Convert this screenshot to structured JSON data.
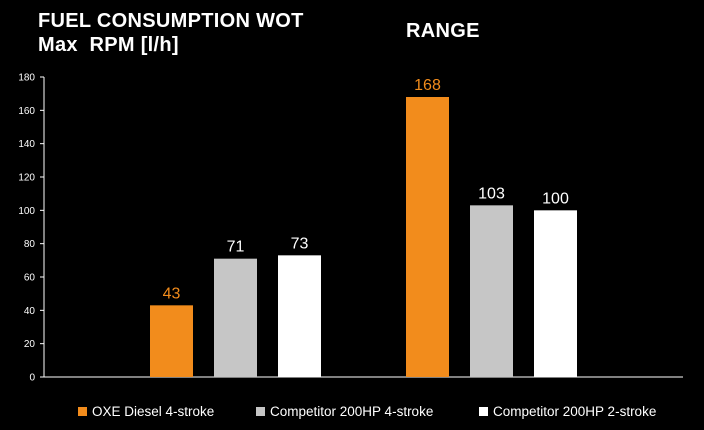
{
  "titles": {
    "left_line1": "FUEL CONSUMPTION WOT",
    "left_line2": "Max  RPM [l/h]",
    "right": "RANGE"
  },
  "colors": {
    "background": "#000000",
    "oxe": "#f28c1c",
    "competitor_4stroke": "#c6c6c6",
    "competitor_2stroke": "#ffffff",
    "axis": "#ffffff"
  },
  "chart_data": {
    "type": "bar",
    "categories": [
      "FUEL CONSUMPTION WOT Max  RPM [l/h]",
      "RANGE"
    ],
    "series": [
      {
        "name": "OXE Diesel 4-stroke",
        "values": [
          43,
          168
        ],
        "color": "#f28c1c",
        "label_color": "#f28c1c"
      },
      {
        "name": "Competitor 200HP 4-stroke",
        "values": [
          71,
          103
        ],
        "color": "#c6c6c6",
        "label_color": "#ffffff"
      },
      {
        "name": "Competitor 200HP 2-stroke",
        "values": [
          73,
          100
        ],
        "color": "#ffffff",
        "label_color": "#ffffff"
      }
    ],
    "ylim": [
      0,
      180
    ],
    "yticks": [
      "0",
      "20",
      "40",
      "60",
      "80",
      "100",
      "120",
      "140",
      "160",
      "180"
    ],
    "grid": false,
    "legend_position": "bottom"
  }
}
